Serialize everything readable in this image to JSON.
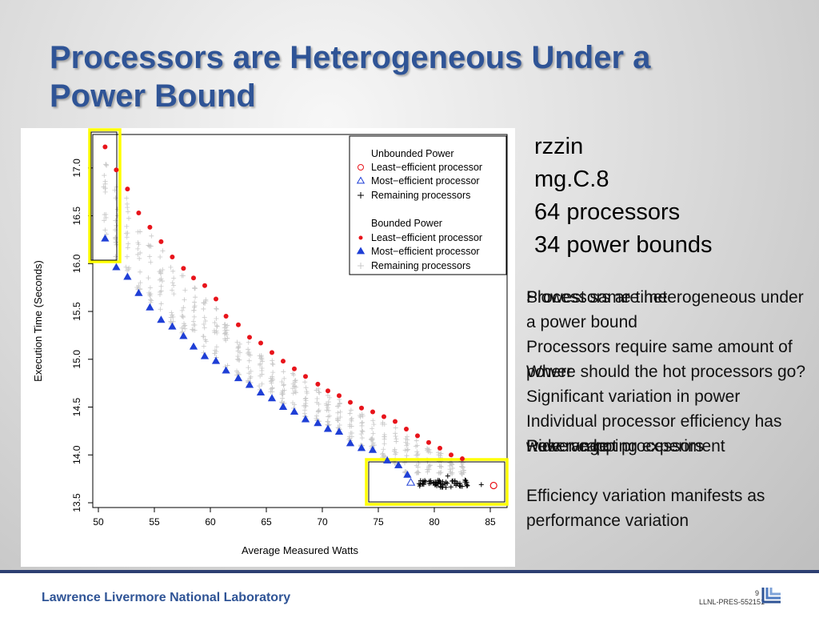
{
  "slide": {
    "title": "Processors are Heterogeneous Under a Power Bound",
    "info": [
      "rzzin",
      "mg.C.8",
      "64 processors",
      "34 power bounds"
    ],
    "notes": [
      "Processors are heterogeneous under a power bound",
      "Processors require same amount of power",
      "Significant variation in power",
      "Individual processor efficiency has wide range",
      "Efficiency variation manifests as performance variation",
      "Slowest same time",
      "Where should the hot processors go?",
      "Power capping experiment",
      "Reserve hot processors"
    ],
    "footer": {
      "lab": "Lawrence Livermore National Laboratory",
      "page": "9",
      "code": "LLNL-PRES-552151"
    },
    "colors": {
      "title": "#2f5496",
      "red": "#e8141b",
      "blue": "#1f3fd6",
      "highlight": "#ffff00",
      "gray": "#c8c8c8"
    }
  },
  "chart_data": {
    "type": "scatter",
    "xlabel": "Average Measured Watts",
    "ylabel": "Execution Time (Seconds)",
    "xlim": [
      49.5,
      86.5
    ],
    "ylim": [
      13.45,
      17.35
    ],
    "xticks": [
      50,
      55,
      60,
      65,
      70,
      75,
      80,
      85
    ],
    "yticks": [
      13.5,
      14.0,
      14.5,
      15.0,
      15.5,
      16.0,
      16.5,
      17.0
    ],
    "legend": {
      "placement": "top-right",
      "unbounded_title": "Unbounded Power",
      "bounded_title": "Bounded Power",
      "least": "Least−efficient processor",
      "most": "Most−efficient processor",
      "remaining": "Remaining processors"
    },
    "bounded_least": [
      [
        50.6,
        17.22
      ],
      [
        51.6,
        16.98
      ],
      [
        52.6,
        16.78
      ],
      [
        53.6,
        16.53
      ],
      [
        54.6,
        16.38
      ],
      [
        55.6,
        16.23
      ],
      [
        56.6,
        16.07
      ],
      [
        57.6,
        15.95
      ],
      [
        58.5,
        15.85
      ],
      [
        59.5,
        15.77
      ],
      [
        60.5,
        15.63
      ],
      [
        61.4,
        15.45
      ],
      [
        62.5,
        15.36
      ],
      [
        63.5,
        15.23
      ],
      [
        64.5,
        15.17
      ],
      [
        65.5,
        15.07
      ],
      [
        66.5,
        14.98
      ],
      [
        67.5,
        14.9
      ],
      [
        68.5,
        14.82
      ],
      [
        69.6,
        14.74
      ],
      [
        70.5,
        14.67
      ],
      [
        71.5,
        14.62
      ],
      [
        72.5,
        14.55
      ],
      [
        73.5,
        14.49
      ],
      [
        74.5,
        14.45
      ],
      [
        75.5,
        14.4
      ],
      [
        76.5,
        14.35
      ],
      [
        77.5,
        14.27
      ],
      [
        78.5,
        14.2
      ],
      [
        79.5,
        14.13
      ],
      [
        80.5,
        14.07
      ],
      [
        81.5,
        14.0
      ],
      [
        82.5,
        13.96
      ]
    ],
    "bounded_most": [
      [
        50.6,
        16.26
      ],
      [
        51.6,
        15.96
      ],
      [
        52.6,
        15.86
      ],
      [
        53.6,
        15.69
      ],
      [
        54.6,
        15.54
      ],
      [
        55.6,
        15.41
      ],
      [
        56.6,
        15.34
      ],
      [
        57.6,
        15.24
      ],
      [
        58.5,
        15.13
      ],
      [
        59.5,
        15.03
      ],
      [
        60.5,
        14.98
      ],
      [
        61.4,
        14.88
      ],
      [
        62.5,
        14.8
      ],
      [
        63.5,
        14.73
      ],
      [
        64.5,
        14.65
      ],
      [
        65.5,
        14.59
      ],
      [
        66.5,
        14.5
      ],
      [
        67.5,
        14.45
      ],
      [
        68.5,
        14.37
      ],
      [
        69.6,
        14.33
      ],
      [
        70.5,
        14.27
      ],
      [
        71.5,
        14.24
      ],
      [
        72.5,
        14.12
      ],
      [
        73.5,
        14.07
      ],
      [
        74.5,
        14.05
      ],
      [
        75.8,
        13.94
      ],
      [
        76.8,
        13.89
      ],
      [
        77.6,
        13.79
      ]
    ],
    "unbounded_least": [
      85.3,
      13.68
    ],
    "unbounded_most": [
      77.9,
      13.71
    ],
    "unbounded_remaining": {
      "x_range": [
        78.5,
        83.0
      ],
      "y_range": [
        13.66,
        13.74
      ],
      "count": 62,
      "extra": [
        [
          81.2,
          13.78
        ],
        [
          84.2,
          13.69
        ]
      ]
    },
    "bounded_remaining_note": "Grey crosses spread between least- and most-efficient values at each bound"
  }
}
